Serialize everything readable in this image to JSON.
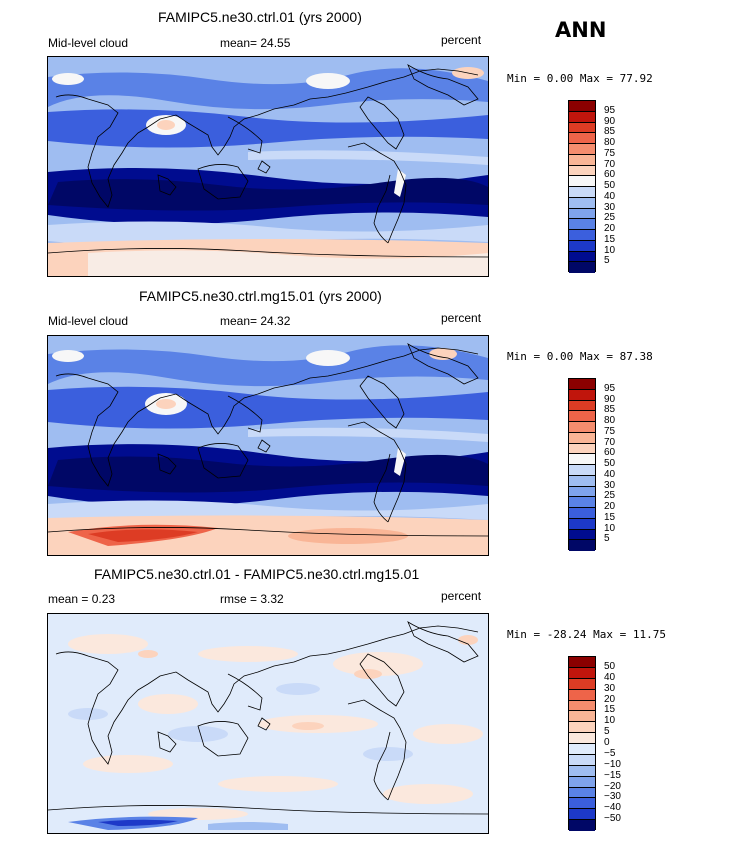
{
  "season": "ANN",
  "panels": [
    {
      "title": "FAMIPC5.ne30.ctrl.01 (yrs 2000)",
      "left_label": "Mid-level cloud",
      "center_label": "mean=  24.55",
      "right_label": "percent",
      "minmax": "Min =   0.00 Max =  77.92",
      "colorbar": [
        "95",
        "90",
        "85",
        "80",
        "75",
        "70",
        "60",
        "50",
        "40",
        "30",
        "25",
        "20",
        "15",
        "10",
        "5"
      ]
    },
    {
      "title": "FAMIPC5.ne30.ctrl.mg15.01 (yrs 2000)",
      "left_label": "Mid-level cloud",
      "center_label": "mean=  24.32",
      "right_label": "percent",
      "minmax": "Min =   0.00 Max =  87.38",
      "colorbar": [
        "95",
        "90",
        "85",
        "80",
        "75",
        "70",
        "60",
        "50",
        "40",
        "30",
        "25",
        "20",
        "15",
        "10",
        "5"
      ]
    },
    {
      "title": "FAMIPC5.ne30.ctrl.01 - FAMIPC5.ne30.ctrl.mg15.01",
      "left_label": "mean =   0.23",
      "center_label": "rmse =   3.32",
      "right_label": "percent",
      "minmax": "Min = -28.24 Max =  11.75",
      "colorbar": [
        "50",
        "40",
        "30",
        "20",
        "15",
        "10",
        "5",
        "0",
        "−5",
        "−10",
        "−15",
        "−20",
        "−30",
        "−40",
        "−50"
      ]
    }
  ],
  "colors": {
    "seq": [
      "#8b0000",
      "#c0150c",
      "#dd3c24",
      "#ee6449",
      "#f58d6e",
      "#f9b596",
      "#fcd3bd",
      "#f7f7f7",
      "#c9daf8",
      "#9fbdf1",
      "#7fa3ec",
      "#5a82e6",
      "#3b5fdd",
      "#1d39c8",
      "#000c8f",
      "#000766"
    ],
    "diff": [
      "#8b0000",
      "#c0150c",
      "#dd3c24",
      "#ee6449",
      "#f58d6e",
      "#f9b596",
      "#fcd3bd",
      "#fbe8dd",
      "#e0ebfb",
      "#c9daf8",
      "#9fbdf1",
      "#7fa3ec",
      "#5a82e6",
      "#3b5fdd",
      "#1d39c8",
      "#000766"
    ]
  }
}
